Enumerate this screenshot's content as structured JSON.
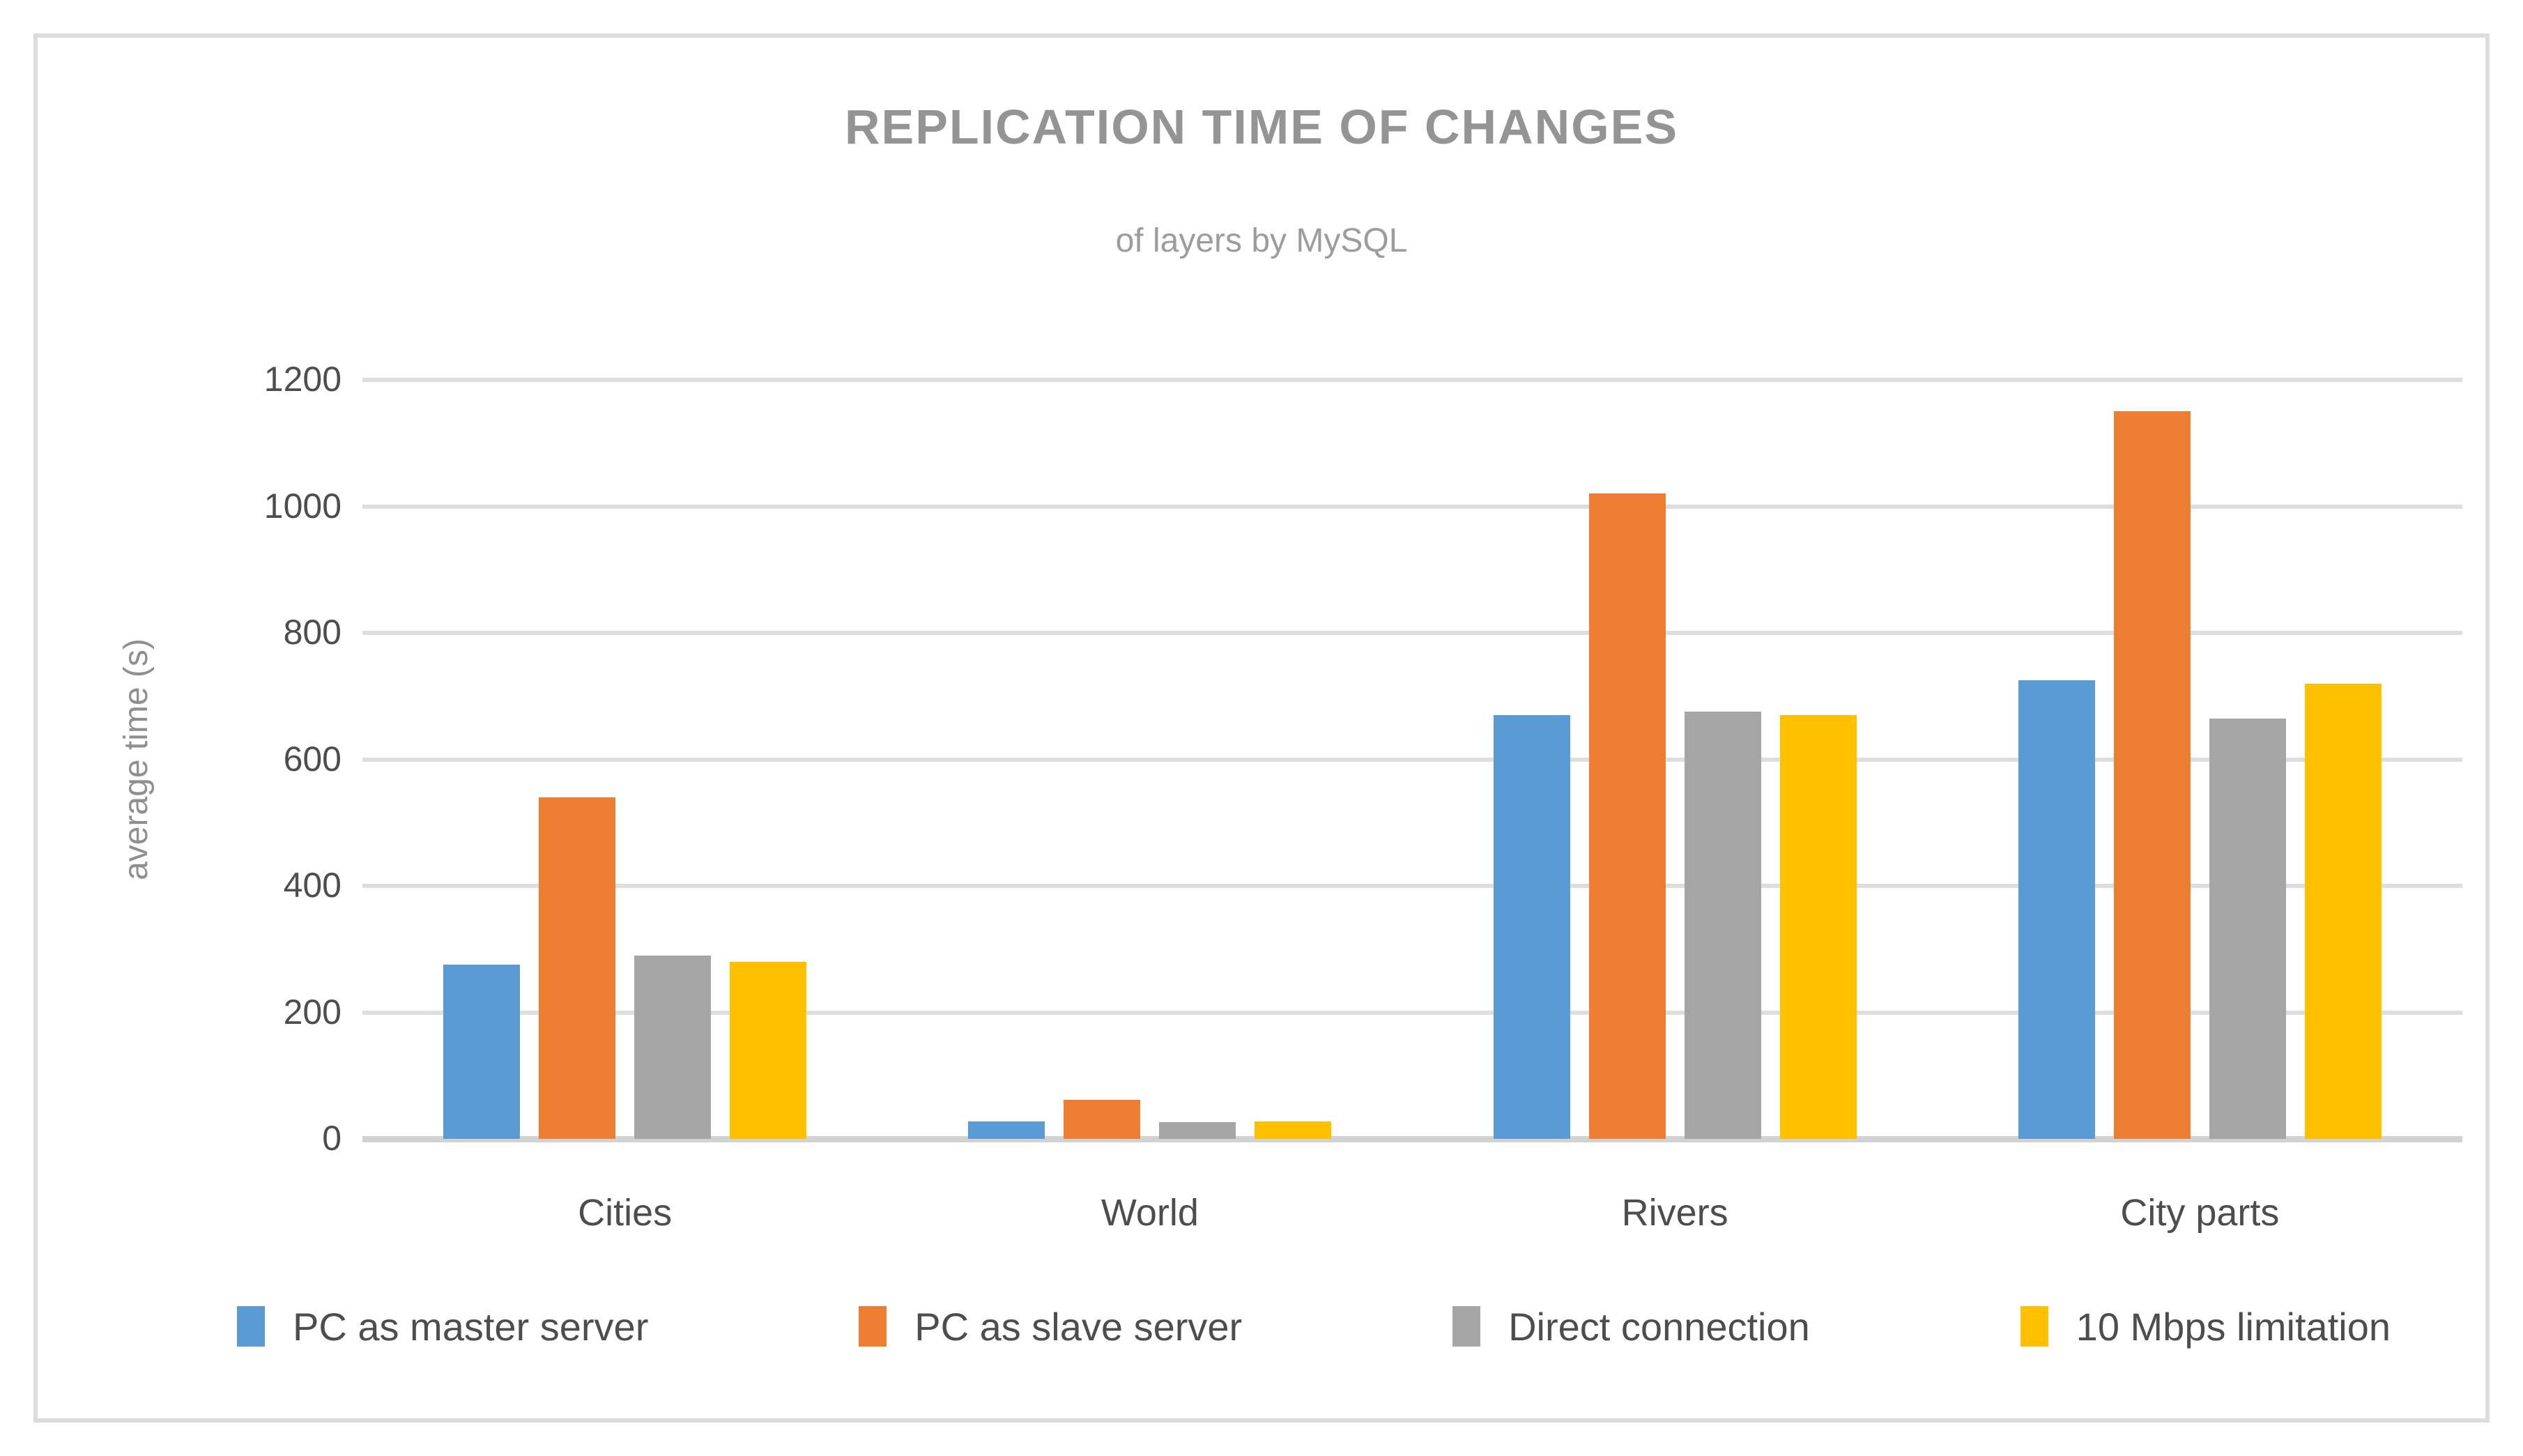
{
  "chart_data": {
    "type": "bar",
    "title": "REPLICATION TIME OF CHANGES",
    "subtitle": "of layers by MySQL",
    "ylabel": "average time (s)",
    "ylim": [
      0,
      1200
    ],
    "ytick_step": 200,
    "yticks": [
      "0",
      "200",
      "400",
      "600",
      "800",
      "1000",
      "1200"
    ],
    "grid": "horizontal",
    "legend_position": "bottom",
    "categories": [
      "Cities",
      "World",
      "Rivers",
      "City parts"
    ],
    "series": [
      {
        "name": "PC as master server",
        "color": "#5B9BD5",
        "values": [
          275,
          28,
          670,
          725
        ]
      },
      {
        "name": "PC as slave server",
        "color": "#ED7D31",
        "values": [
          540,
          62,
          1020,
          1150
        ]
      },
      {
        "name": "Direct connection",
        "color": "#A5A5A5",
        "values": [
          290,
          26,
          675,
          665
        ]
      },
      {
        "name": "10 Mbps limitation",
        "color": "#FFC000",
        "values": [
          280,
          28,
          670,
          720
        ]
      }
    ],
    "colors": {
      "gridline": "#dedede",
      "axis_line": "#d2d2d2",
      "title_text": "#949494",
      "label_text": "#4d4d4d",
      "frame_border": "#dcdcdc"
    }
  }
}
